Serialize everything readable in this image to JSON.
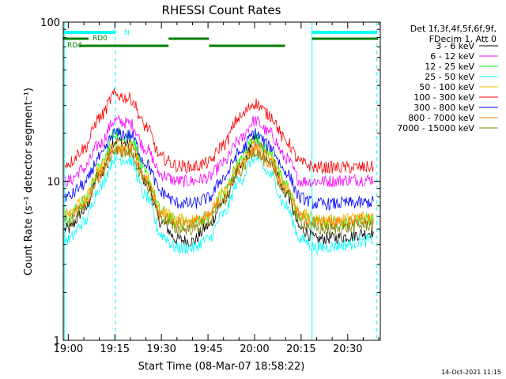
{
  "chart_data": {
    "type": "line",
    "title": "RHESSI Count Rates",
    "xlabel": "Start Time (08-Mar-07 18:58:22)",
    "ylabel": "Count Rate (s⁻¹ detector segment⁻¹)",
    "y_scale": "log",
    "ylim": [
      1,
      100
    ],
    "y_ticks": [
      {
        "value": 1,
        "label": "1"
      },
      {
        "value": 10,
        "label": "10"
      },
      {
        "value": 100,
        "label": "100"
      }
    ],
    "x_ticks": [
      "19:00",
      "19:15",
      "19:30",
      "19:45",
      "20:00",
      "20:15",
      "20:30"
    ],
    "x_tick_minutes": [
      60,
      75,
      90,
      105,
      120,
      135,
      150
    ],
    "xlim_minutes": [
      58.37,
      160.5
    ],
    "timestamp": "14-Oct-2021 11:15",
    "legend_header": [
      "Det 1f,3f,4f,5f,6f,9f,",
      "FDecim 1, Att 0"
    ],
    "legend_placement": "right",
    "series": [
      {
        "name": "3 - 6 keV",
        "color": "#000000",
        "x_minutes": [
          60,
          65,
          70,
          75,
          80,
          85,
          90,
          95,
          100,
          105,
          110,
          115,
          120,
          125,
          130,
          135,
          140,
          145,
          150,
          155,
          158
        ],
        "values": [
          5.0,
          6.5,
          11,
          18,
          17,
          10,
          5.5,
          4.3,
          4.2,
          5.2,
          7.5,
          12,
          18,
          14,
          8.5,
          5.0,
          4.3,
          4.4,
          4.5,
          4.7,
          4.8
        ]
      },
      {
        "name": "6 - 12 keV",
        "color": "#ff00ff",
        "x_minutes": [
          60,
          65,
          70,
          75,
          80,
          85,
          90,
          95,
          100,
          105,
          110,
          115,
          120,
          125,
          130,
          135,
          140,
          145,
          150,
          155,
          158
        ],
        "values": [
          10,
          12,
          17,
          24,
          23,
          16,
          11,
          10,
          10,
          10.5,
          13,
          18,
          24,
          20,
          14,
          10,
          10,
          10,
          10.2,
          10.2,
          10.3
        ]
      },
      {
        "name": "12 - 25 keV",
        "color": "#00ff00",
        "x_minutes": [
          60,
          65,
          70,
          75,
          80,
          85,
          90,
          95,
          100,
          105,
          110,
          115,
          120,
          125,
          130,
          135,
          140,
          145,
          150,
          155,
          158
        ],
        "values": [
          6.0,
          7.5,
          12,
          20,
          19,
          11,
          6.5,
          5.5,
          5.5,
          6.0,
          8.5,
          13,
          19,
          15,
          9.5,
          6.0,
          5.5,
          5.5,
          5.5,
          5.8,
          5.8
        ]
      },
      {
        "name": "25 - 50 keV",
        "color": "#00ffff",
        "x_minutes": [
          60,
          65,
          70,
          75,
          80,
          85,
          90,
          95,
          100,
          105,
          110,
          115,
          120,
          125,
          130,
          135,
          140,
          145,
          150,
          155,
          158
        ],
        "values": [
          4.3,
          5.5,
          9,
          14,
          13.5,
          8,
          4.6,
          3.8,
          3.8,
          4.3,
          6.2,
          10,
          14,
          11,
          7.0,
          4.3,
          3.8,
          3.9,
          4.0,
          4.2,
          4.3
        ]
      },
      {
        "name": "50 - 100 keV",
        "color": "#ffb400",
        "x_minutes": [
          60,
          65,
          70,
          75,
          80,
          85,
          90,
          95,
          100,
          105,
          110,
          115,
          120,
          125,
          130,
          135,
          140,
          145,
          150,
          155,
          158
        ],
        "values": [
          6.2,
          7.5,
          12,
          17,
          16.5,
          10.5,
          6.5,
          5.8,
          5.7,
          6.2,
          8.5,
          12.5,
          17,
          14,
          9.5,
          6.2,
          5.7,
          5.7,
          5.8,
          6.0,
          6.0
        ]
      },
      {
        "name": "100 - 300 keV",
        "color": "#ff0000",
        "x_minutes": [
          60,
          65,
          70,
          75,
          80,
          85,
          90,
          95,
          100,
          105,
          110,
          115,
          120,
          125,
          130,
          135,
          140,
          145,
          150,
          155,
          158
        ],
        "values": [
          13,
          16,
          25,
          35,
          33,
          22,
          14,
          12.5,
          12.3,
          13,
          17,
          25,
          31,
          26,
          18,
          13,
          12.2,
          12.2,
          12.2,
          12.2,
          12.3
        ]
      },
      {
        "name": "300 - 800 keV",
        "color": "#0000ff",
        "x_minutes": [
          60,
          65,
          70,
          75,
          80,
          85,
          90,
          95,
          100,
          105,
          110,
          115,
          120,
          125,
          130,
          135,
          140,
          145,
          150,
          155,
          158
        ],
        "values": [
          8.0,
          9.5,
          14,
          20,
          19.5,
          13,
          8.5,
          7.3,
          7.2,
          7.8,
          10.5,
          15,
          20,
          16.5,
          11.5,
          7.8,
          7.2,
          7.2,
          7.3,
          7.3,
          7.4
        ]
      },
      {
        "name": "800 - 7000 keV",
        "color": "#ff7f00",
        "x_minutes": [
          60,
          65,
          70,
          75,
          80,
          85,
          90,
          95,
          100,
          105,
          110,
          115,
          120,
          125,
          130,
          135,
          140,
          145,
          150,
          155,
          158
        ],
        "values": [
          6.0,
          7.2,
          11,
          16,
          15.5,
          10,
          6.2,
          5.5,
          5.5,
          6.0,
          8.0,
          12,
          16,
          13,
          9.0,
          6.0,
          5.5,
          5.5,
          5.6,
          5.8,
          5.8
        ]
      },
      {
        "name": "7000 - 15000 keV",
        "color": "#808000",
        "x_minutes": [
          60,
          65,
          70,
          75,
          80,
          85,
          90,
          95,
          100,
          105,
          110,
          115,
          120,
          125,
          130,
          135,
          140,
          145,
          150,
          155,
          158
        ],
        "values": [
          5.5,
          6.7,
          10.5,
          15.5,
          15,
          9.5,
          5.8,
          5.0,
          5.0,
          5.5,
          7.5,
          11.5,
          15.5,
          12.5,
          8.5,
          5.5,
          5.0,
          5.0,
          5.1,
          5.3,
          5.3
        ]
      }
    ],
    "flag_bars": [
      {
        "label": "N",
        "color": "#00ffff",
        "segments": [
          [
            58.37,
            75.2
          ],
          [
            138.5,
            159.4
          ]
        ]
      },
      {
        "label": "RD0",
        "color": "#008000",
        "segments": [
          [
            58.37,
            66.5
          ],
          [
            92.3,
            105.3
          ],
          [
            138.5,
            159.8
          ]
        ]
      },
      {
        "label": "RD4",
        "color": "#008000",
        "segments": [
          [
            63.5,
            92.3
          ],
          [
            105.3,
            129.8
          ]
        ]
      }
    ],
    "vlines": [
      {
        "x_minutes": 58.7,
        "color": "#00ffff",
        "style": "solid"
      },
      {
        "x_minutes": 75.2,
        "color": "#00ffff",
        "style": "dashed"
      },
      {
        "x_minutes": 138.5,
        "color": "#00ffff",
        "style": "solid"
      },
      {
        "x_minutes": 159.4,
        "color": "#00ffff",
        "style": "dashed"
      }
    ]
  }
}
